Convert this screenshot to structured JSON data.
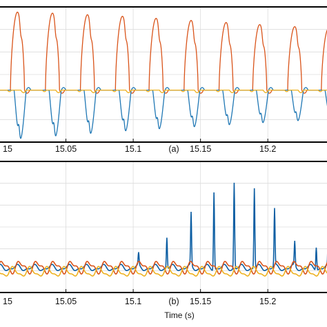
{
  "chart_data": [
    {
      "type": "line",
      "panel_label": "(a)",
      "x_ticks": [
        "15",
        "15.05",
        "15.1",
        "15.15",
        "15.2"
      ],
      "x_tick_values": [
        15.0,
        15.05,
        15.1,
        15.15,
        15.2
      ],
      "xlim": [
        15.0,
        15.245
      ],
      "ylim": [
        -1.0,
        1.6
      ],
      "grid": true,
      "xlabel": "",
      "colors": {
        "blue": "#1f77b4",
        "orange": "#d95319",
        "yellow": "#edb120"
      },
      "pulse_times": [
        15.014,
        15.04,
        15.066,
        15.092,
        15.117,
        15.143,
        15.169,
        15.194,
        15.22,
        15.245
      ],
      "series": [
        {
          "color": "#d95319",
          "peaks": [
            1.5,
            1.48,
            1.45,
            1.42,
            1.38,
            1.34,
            1.3,
            1.26,
            1.22,
            1.18
          ]
        },
        {
          "color": "#1f77b4",
          "peaks": [
            -0.95,
            -0.9,
            -0.85,
            -0.8,
            -0.76,
            -0.72,
            -0.68,
            -0.64,
            -0.6,
            -0.56
          ]
        },
        {
          "color": "#edb120",
          "peaks": [
            -0.05,
            -0.05,
            -0.05,
            -0.05,
            -0.05,
            -0.05,
            -0.05,
            -0.05,
            -0.05,
            -0.05
          ]
        }
      ]
    },
    {
      "type": "line",
      "panel_label": "(b)",
      "x_ticks": [
        "15",
        "15.05",
        "15.1",
        "15.15",
        "15.2"
      ],
      "x_tick_values": [
        15.0,
        15.05,
        15.1,
        15.15,
        15.2
      ],
      "xlim": [
        15.0,
        15.245
      ],
      "ylim": [
        -0.3,
        1.3
      ],
      "grid": true,
      "xlabel": "Time (s)",
      "colors": {
        "blue": "#0c5ea3",
        "orange": "#d95319",
        "yellow": "#edb120"
      },
      "spike_times": [
        15.104,
        15.125,
        15.143,
        15.16,
        15.175,
        15.19,
        15.205,
        15.22,
        15.236,
        15.245
      ],
      "series": [
        {
          "color": "#0c5ea3",
          "spikes": [
            0.15,
            0.38,
            0.65,
            0.95,
            1.05,
            0.98,
            0.7,
            0.3,
            0.28,
            0.55
          ]
        },
        {
          "color": "#d95319",
          "spikes": [
            0.05,
            0.05,
            0.05,
            0.05,
            0.05,
            0.05,
            0.05,
            0.05,
            0.05,
            0.05
          ]
        },
        {
          "color": "#edb120",
          "spikes": [
            -0.08,
            -0.08,
            -0.08,
            -0.08,
            -0.08,
            -0.08,
            -0.08,
            -0.08,
            -0.08,
            -0.08
          ]
        }
      ]
    }
  ]
}
